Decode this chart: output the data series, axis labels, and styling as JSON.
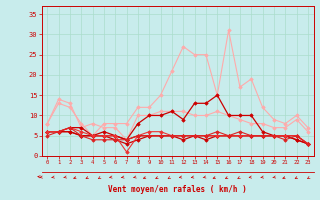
{
  "x": [
    0,
    1,
    2,
    3,
    4,
    5,
    6,
    7,
    8,
    9,
    10,
    11,
    12,
    13,
    14,
    15,
    16,
    17,
    18,
    19,
    20,
    21,
    22,
    23
  ],
  "series": [
    {
      "color": "#ffaaaa",
      "lw": 0.8,
      "marker": "D",
      "ms": 1.8,
      "y": [
        8,
        13,
        12,
        8,
        5,
        8,
        8,
        8,
        12,
        12,
        15,
        21,
        27,
        25,
        25,
        15,
        31,
        17,
        19,
        12,
        9,
        8,
        10,
        7
      ]
    },
    {
      "color": "#ffaaaa",
      "lw": 0.8,
      "marker": "D",
      "ms": 1.8,
      "y": [
        8,
        14,
        13,
        7,
        8,
        7,
        7,
        4,
        10,
        10,
        11,
        11,
        11,
        10,
        10,
        11,
        10,
        9,
        8,
        8,
        7,
        7,
        9,
        6
      ]
    },
    {
      "color": "#cc0000",
      "lw": 0.9,
      "marker": "D",
      "ms": 1.8,
      "y": [
        6,
        6,
        6,
        5,
        5,
        6,
        5,
        4,
        8,
        10,
        10,
        11,
        9,
        13,
        13,
        15,
        10,
        10,
        10,
        6,
        5,
        5,
        5,
        3
      ]
    },
    {
      "color": "#cc0000",
      "lw": 0.9,
      "marker": "D",
      "ms": 1.8,
      "y": [
        6,
        6,
        7,
        7,
        5,
        5,
        4,
        3,
        4,
        5,
        5,
        5,
        4,
        5,
        4,
        5,
        5,
        5,
        5,
        5,
        5,
        5,
        4,
        3
      ]
    },
    {
      "color": "#cc0000",
      "lw": 0.9,
      "marker": "D",
      "ms": 1.8,
      "y": [
        6,
        6,
        6,
        5,
        5,
        5,
        5,
        4,
        5,
        5,
        5,
        5,
        5,
        5,
        5,
        5,
        5,
        5,
        5,
        5,
        5,
        5,
        4,
        3
      ]
    },
    {
      "color": "#ee3333",
      "lw": 0.8,
      "marker": "D",
      "ms": 1.8,
      "y": [
        6,
        6,
        7,
        6,
        5,
        5,
        5,
        1,
        5,
        6,
        6,
        5,
        5,
        5,
        5,
        5,
        5,
        5,
        5,
        5,
        5,
        5,
        5,
        3
      ]
    },
    {
      "color": "#dd2222",
      "lw": 0.8,
      "marker": "D",
      "ms": 1.8,
      "y": [
        5,
        6,
        7,
        5,
        4,
        4,
        4,
        4,
        5,
        5,
        5,
        5,
        5,
        5,
        5,
        6,
        5,
        6,
        5,
        5,
        5,
        4,
        5,
        3
      ]
    }
  ],
  "xlim": [
    -0.5,
    23.5
  ],
  "ylim": [
    0,
    37
  ],
  "yticks": [
    0,
    5,
    10,
    15,
    20,
    25,
    30,
    35
  ],
  "xticks": [
    0,
    1,
    2,
    3,
    4,
    5,
    6,
    7,
    8,
    9,
    10,
    11,
    12,
    13,
    14,
    15,
    16,
    17,
    18,
    19,
    20,
    21,
    22,
    23
  ],
  "xlabel": "Vent moyen/en rafales ( km/h )",
  "bg_color": "#c8ecec",
  "grid_color": "#aaddcc",
  "axis_color": "#cc0000",
  "label_color": "#cc0000",
  "tick_color": "#cc0000"
}
